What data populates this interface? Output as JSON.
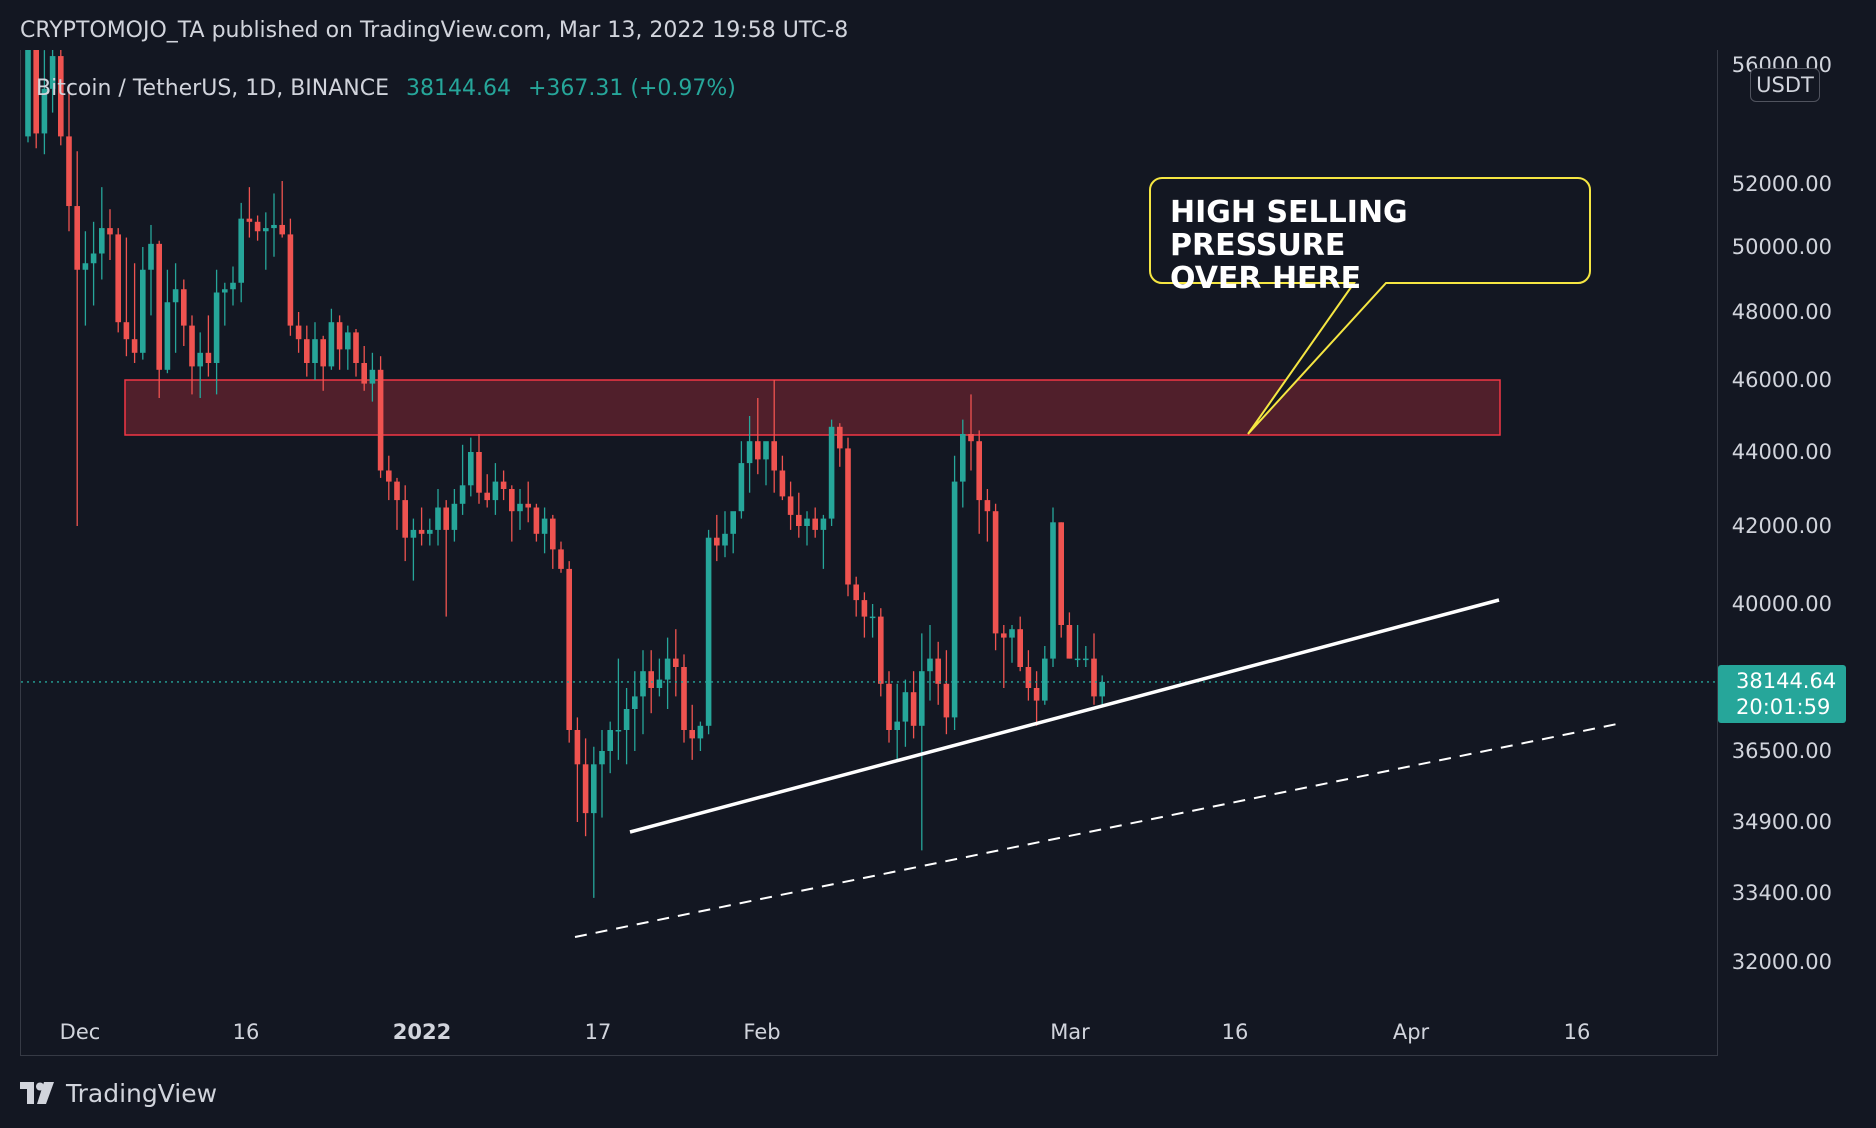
{
  "header": {
    "publisher": "CRYPTOMOJO_TA published on TradingView.com, Mar 13, 2022 19:58 UTC-8"
  },
  "symbol": {
    "name": "Bitcoin / TetherUS, 1D, BINANCE",
    "price": "38144.64",
    "change": "+367.31 (+0.97%)"
  },
  "currency": "USDT",
  "price_tag": {
    "price": "38144.64",
    "countdown": "20:01:59"
  },
  "footer": {
    "brand": "TradingView"
  },
  "colors": {
    "up": "#26a69a",
    "down": "#ef5350",
    "background": "#131722",
    "callout_border": "#f5e642"
  },
  "chart_data": {
    "type": "candlestick",
    "y_ticks": [
      "56000.00",
      "52000.00",
      "50000.00",
      "48000.00",
      "46000.00",
      "44000.00",
      "42000.00",
      "40000.00",
      "36500.00",
      "34900.00",
      "33400.00",
      "32000.00"
    ],
    "x_ticks": [
      {
        "label": "Dec",
        "bold": false
      },
      {
        "label": "16",
        "bold": false
      },
      {
        "label": "2022",
        "bold": true
      },
      {
        "label": "17",
        "bold": false
      },
      {
        "label": "Feb",
        "bold": false
      },
      {
        "label": "Mar",
        "bold": false
      },
      {
        "label": "16",
        "bold": false
      },
      {
        "label": "Apr",
        "bold": false
      },
      {
        "label": "16",
        "bold": false
      }
    ],
    "last_price": 38144.64,
    "candles": [
      {
        "o": 53600,
        "h": 57600,
        "l": 53400,
        "c": 57000
      },
      {
        "o": 57000,
        "h": 57800,
        "l": 53200,
        "c": 53700
      },
      {
        "o": 53700,
        "h": 56500,
        "l": 53000,
        "c": 55200
      },
      {
        "o": 55200,
        "h": 57200,
        "l": 54400,
        "c": 56300
      },
      {
        "o": 56300,
        "h": 56800,
        "l": 53300,
        "c": 53600
      },
      {
        "o": 53600,
        "h": 55300,
        "l": 50500,
        "c": 51300
      },
      {
        "o": 51300,
        "h": 53100,
        "l": 42000,
        "c": 49300
      },
      {
        "o": 49300,
        "h": 50500,
        "l": 47600,
        "c": 49500
      },
      {
        "o": 49500,
        "h": 50800,
        "l": 48200,
        "c": 49800
      },
      {
        "o": 49800,
        "h": 51900,
        "l": 49000,
        "c": 50600
      },
      {
        "o": 50600,
        "h": 51200,
        "l": 49600,
        "c": 50400
      },
      {
        "o": 50400,
        "h": 50600,
        "l": 47400,
        "c": 47700
      },
      {
        "o": 47700,
        "h": 50300,
        "l": 46700,
        "c": 47200
      },
      {
        "o": 47200,
        "h": 49500,
        "l": 46500,
        "c": 46800
      },
      {
        "o": 46800,
        "h": 50000,
        "l": 46600,
        "c": 49300
      },
      {
        "o": 49300,
        "h": 50700,
        "l": 47900,
        "c": 50100
      },
      {
        "o": 50100,
        "h": 50200,
        "l": 45500,
        "c": 46300
      },
      {
        "o": 46300,
        "h": 49300,
        "l": 46200,
        "c": 48300
      },
      {
        "o": 48300,
        "h": 49500,
        "l": 46800,
        "c": 48700
      },
      {
        "o": 48700,
        "h": 49000,
        "l": 47000,
        "c": 47600
      },
      {
        "o": 47600,
        "h": 47900,
        "l": 45600,
        "c": 46400
      },
      {
        "o": 46400,
        "h": 47400,
        "l": 45500,
        "c": 46800
      },
      {
        "o": 46800,
        "h": 47900,
        "l": 46100,
        "c": 46500
      },
      {
        "o": 46500,
        "h": 49300,
        "l": 45600,
        "c": 48600
      },
      {
        "o": 48600,
        "h": 48900,
        "l": 47600,
        "c": 48700
      },
      {
        "o": 48700,
        "h": 49400,
        "l": 48200,
        "c": 48900
      },
      {
        "o": 48900,
        "h": 51400,
        "l": 48300,
        "c": 50900
      },
      {
        "o": 50900,
        "h": 51900,
        "l": 50300,
        "c": 50800
      },
      {
        "o": 50800,
        "h": 51000,
        "l": 50200,
        "c": 50500
      },
      {
        "o": 50500,
        "h": 51100,
        "l": 49300,
        "c": 50600
      },
      {
        "o": 50600,
        "h": 51700,
        "l": 49700,
        "c": 50700
      },
      {
        "o": 50700,
        "h": 52100,
        "l": 50300,
        "c": 50400
      },
      {
        "o": 50400,
        "h": 50900,
        "l": 47300,
        "c": 47600
      },
      {
        "o": 47600,
        "h": 48000,
        "l": 46800,
        "c": 47200
      },
      {
        "o": 47200,
        "h": 47600,
        "l": 46100,
        "c": 46500
      },
      {
        "o": 46500,
        "h": 47700,
        "l": 46000,
        "c": 47200
      },
      {
        "o": 47200,
        "h": 47300,
        "l": 45700,
        "c": 46400
      },
      {
        "o": 46400,
        "h": 48100,
        "l": 46300,
        "c": 47700
      },
      {
        "o": 47700,
        "h": 47900,
        "l": 46300,
        "c": 46900
      },
      {
        "o": 46900,
        "h": 47600,
        "l": 46300,
        "c": 47400
      },
      {
        "o": 47400,
        "h": 47500,
        "l": 46100,
        "c": 46500
      },
      {
        "o": 46500,
        "h": 47000,
        "l": 45700,
        "c": 45900
      },
      {
        "o": 45900,
        "h": 46800,
        "l": 45400,
        "c": 46300
      },
      {
        "o": 46300,
        "h": 46700,
        "l": 43300,
        "c": 43500
      },
      {
        "o": 43500,
        "h": 43900,
        "l": 42700,
        "c": 43200
      },
      {
        "o": 43200,
        "h": 43300,
        "l": 41900,
        "c": 42700
      },
      {
        "o": 42700,
        "h": 43100,
        "l": 41100,
        "c": 41700
      },
      {
        "o": 41700,
        "h": 42200,
        "l": 40600,
        "c": 41900
      },
      {
        "o": 41900,
        "h": 42500,
        "l": 41500,
        "c": 41800
      },
      {
        "o": 41800,
        "h": 42200,
        "l": 41500,
        "c": 41900
      },
      {
        "o": 41900,
        "h": 43000,
        "l": 41500,
        "c": 42500
      },
      {
        "o": 42500,
        "h": 42700,
        "l": 39700,
        "c": 41900
      },
      {
        "o": 41900,
        "h": 43000,
        "l": 41600,
        "c": 42600
      },
      {
        "o": 42600,
        "h": 44200,
        "l": 42300,
        "c": 43100
      },
      {
        "o": 43100,
        "h": 44400,
        "l": 42800,
        "c": 44000
      },
      {
        "o": 44000,
        "h": 44500,
        "l": 42600,
        "c": 42900
      },
      {
        "o": 42900,
        "h": 43400,
        "l": 42500,
        "c": 42700
      },
      {
        "o": 42700,
        "h": 43700,
        "l": 42300,
        "c": 43200
      },
      {
        "o": 43200,
        "h": 43500,
        "l": 42700,
        "c": 43000
      },
      {
        "o": 43000,
        "h": 43100,
        "l": 41600,
        "c": 42400
      },
      {
        "o": 42400,
        "h": 43000,
        "l": 41900,
        "c": 42600
      },
      {
        "o": 42600,
        "h": 43200,
        "l": 42100,
        "c": 42500
      },
      {
        "o": 42500,
        "h": 42600,
        "l": 41600,
        "c": 41800
      },
      {
        "o": 41800,
        "h": 42500,
        "l": 41300,
        "c": 42200
      },
      {
        "o": 42200,
        "h": 42300,
        "l": 40900,
        "c": 41400
      },
      {
        "o": 41400,
        "h": 41600,
        "l": 40800,
        "c": 40900
      },
      {
        "o": 40900,
        "h": 41100,
        "l": 36700,
        "c": 37000
      },
      {
        "o": 37000,
        "h": 37300,
        "l": 34900,
        "c": 36200
      },
      {
        "o": 36200,
        "h": 36800,
        "l": 34600,
        "c": 35100
      },
      {
        "o": 35100,
        "h": 36600,
        "l": 33300,
        "c": 36200
      },
      {
        "o": 36200,
        "h": 37000,
        "l": 35000,
        "c": 36500
      },
      {
        "o": 36500,
        "h": 37200,
        "l": 36000,
        "c": 37000
      },
      {
        "o": 37000,
        "h": 38700,
        "l": 36300,
        "c": 37000
      },
      {
        "o": 37000,
        "h": 38000,
        "l": 36200,
        "c": 37500
      },
      {
        "o": 37500,
        "h": 38400,
        "l": 36500,
        "c": 37800
      },
      {
        "o": 37800,
        "h": 38900,
        "l": 36900,
        "c": 38400
      },
      {
        "o": 38400,
        "h": 38900,
        "l": 37400,
        "c": 38000
      },
      {
        "o": 38000,
        "h": 38700,
        "l": 37800,
        "c": 38200
      },
      {
        "o": 38200,
        "h": 39200,
        "l": 37500,
        "c": 38700
      },
      {
        "o": 38700,
        "h": 39400,
        "l": 37800,
        "c": 38500
      },
      {
        "o": 38500,
        "h": 38800,
        "l": 36700,
        "c": 37000
      },
      {
        "o": 37000,
        "h": 37600,
        "l": 36300,
        "c": 36800
      },
      {
        "o": 36800,
        "h": 37200,
        "l": 36500,
        "c": 37100
      },
      {
        "o": 37100,
        "h": 41900,
        "l": 36900,
        "c": 41700
      },
      {
        "o": 41700,
        "h": 42300,
        "l": 41100,
        "c": 41500
      },
      {
        "o": 41500,
        "h": 42400,
        "l": 41200,
        "c": 41800
      },
      {
        "o": 41800,
        "h": 42300,
        "l": 41300,
        "c": 42400
      },
      {
        "o": 42400,
        "h": 44300,
        "l": 42200,
        "c": 43700
      },
      {
        "o": 43700,
        "h": 45000,
        "l": 42900,
        "c": 44300
      },
      {
        "o": 44300,
        "h": 45500,
        "l": 43400,
        "c": 43800
      },
      {
        "o": 43800,
        "h": 44200,
        "l": 43100,
        "c": 44300
      },
      {
        "o": 44300,
        "h": 46000,
        "l": 42900,
        "c": 43500
      },
      {
        "o": 43500,
        "h": 43900,
        "l": 42700,
        "c": 42800
      },
      {
        "o": 42800,
        "h": 43200,
        "l": 41900,
        "c": 42300
      },
      {
        "o": 42300,
        "h": 42900,
        "l": 41700,
        "c": 42000
      },
      {
        "o": 42000,
        "h": 42400,
        "l": 41500,
        "c": 42200
      },
      {
        "o": 42200,
        "h": 42500,
        "l": 41700,
        "c": 41900
      },
      {
        "o": 41900,
        "h": 42300,
        "l": 40900,
        "c": 42200
      },
      {
        "o": 42200,
        "h": 44900,
        "l": 42000,
        "c": 44700
      },
      {
        "o": 44700,
        "h": 44800,
        "l": 43600,
        "c": 44100
      },
      {
        "o": 44100,
        "h": 44400,
        "l": 40200,
        "c": 40500
      },
      {
        "o": 40500,
        "h": 40700,
        "l": 39700,
        "c": 40100
      },
      {
        "o": 40100,
        "h": 40300,
        "l": 39200,
        "c": 39700
      },
      {
        "o": 39700,
        "h": 40000,
        "l": 39200,
        "c": 39700
      },
      {
        "o": 39700,
        "h": 39900,
        "l": 37800,
        "c": 38100
      },
      {
        "o": 38100,
        "h": 38400,
        "l": 36700,
        "c": 37000
      },
      {
        "o": 37000,
        "h": 38100,
        "l": 36300,
        "c": 37200
      },
      {
        "o": 37200,
        "h": 38200,
        "l": 36600,
        "c": 37900
      },
      {
        "o": 37900,
        "h": 38400,
        "l": 36800,
        "c": 37100
      },
      {
        "o": 37100,
        "h": 39300,
        "l": 34300,
        "c": 38400
      },
      {
        "o": 38400,
        "h": 39500,
        "l": 37700,
        "c": 38700
      },
      {
        "o": 38700,
        "h": 39100,
        "l": 37600,
        "c": 38100
      },
      {
        "o": 38100,
        "h": 38900,
        "l": 36900,
        "c": 37300
      },
      {
        "o": 37300,
        "h": 43900,
        "l": 37000,
        "c": 43200
      },
      {
        "o": 43200,
        "h": 44900,
        "l": 42500,
        "c": 44500
      },
      {
        "o": 44500,
        "h": 45600,
        "l": 43500,
        "c": 44300
      },
      {
        "o": 44300,
        "h": 44600,
        "l": 41800,
        "c": 42700
      },
      {
        "o": 42700,
        "h": 43000,
        "l": 41600,
        "c": 42400
      },
      {
        "o": 42400,
        "h": 42600,
        "l": 38900,
        "c": 39300
      },
      {
        "o": 39300,
        "h": 39500,
        "l": 38000,
        "c": 39200
      },
      {
        "o": 39200,
        "h": 39500,
        "l": 38600,
        "c": 39400
      },
      {
        "o": 39400,
        "h": 39700,
        "l": 38400,
        "c": 38500
      },
      {
        "o": 38500,
        "h": 38900,
        "l": 37700,
        "c": 38000
      },
      {
        "o": 38000,
        "h": 38400,
        "l": 37100,
        "c": 37700
      },
      {
        "o": 37700,
        "h": 39000,
        "l": 37600,
        "c": 38700
      },
      {
        "o": 38700,
        "h": 42500,
        "l": 38500,
        "c": 42100
      },
      {
        "o": 42100,
        "h": 42100,
        "l": 39200,
        "c": 39500
      },
      {
        "o": 39500,
        "h": 39800,
        "l": 38700,
        "c": 38700
      },
      {
        "o": 38700,
        "h": 39500,
        "l": 38500,
        "c": 38700
      },
      {
        "o": 38700,
        "h": 39000,
        "l": 38500,
        "c": 38700
      },
      {
        "o": 38700,
        "h": 39300,
        "l": 37600,
        "c": 37800
      },
      {
        "o": 37800,
        "h": 38300,
        "l": 37600,
        "c": 38144.64
      }
    ]
  }
}
